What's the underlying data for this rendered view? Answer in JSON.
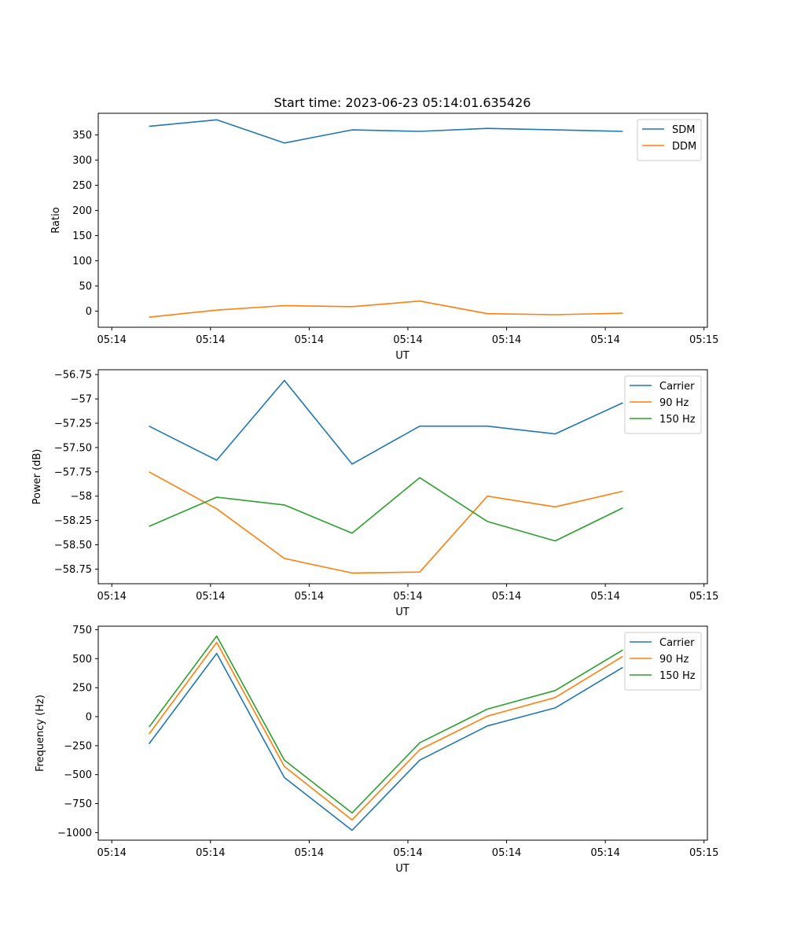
{
  "figure_title": "Start time: 2023-06-23 05:14:01.635426",
  "chart_data": [
    {
      "type": "line",
      "title": "",
      "xlabel": "UT",
      "ylabel": "Ratio",
      "x_ticks": [
        "05:14",
        "05:14",
        "05:14",
        "05:14",
        "05:14",
        "05:14",
        "05:15"
      ],
      "y_ticks": [
        0,
        50,
        100,
        150,
        200,
        250,
        300,
        350
      ],
      "ylim": [
        -32,
        393
      ],
      "x": [
        1,
        2,
        3,
        4,
        5,
        6,
        7,
        8
      ],
      "xlim": [
        0.25,
        9.25
      ],
      "grid": false,
      "legend_position": "top-right",
      "series": [
        {
          "name": "SDM",
          "color": "#1f77b4",
          "values": [
            367,
            380,
            334,
            360,
            357,
            363,
            360,
            357
          ]
        },
        {
          "name": "DDM",
          "color": "#ff7f0e",
          "values": [
            -12,
            2,
            11,
            9,
            20,
            -5,
            -7,
            -4
          ]
        }
      ]
    },
    {
      "type": "line",
      "title": "",
      "xlabel": "UT",
      "ylabel": "Power (dB)",
      "x_ticks": [
        "05:14",
        "05:14",
        "05:14",
        "05:14",
        "05:14",
        "05:14",
        "05:15"
      ],
      "y_ticks": [
        -58.75,
        -58.5,
        -58.25,
        -58.0,
        -57.75,
        -57.5,
        -57.25,
        -57.0,
        -56.75
      ],
      "ylim": [
        -58.9,
        -56.7
      ],
      "x": [
        1,
        2,
        3,
        4,
        5,
        6,
        7,
        8
      ],
      "xlim": [
        0.25,
        9.25
      ],
      "grid": false,
      "legend_position": "top-right",
      "series": [
        {
          "name": "Carrier",
          "color": "#1f77b4",
          "values": [
            -57.28,
            -57.63,
            -56.81,
            -57.67,
            -57.28,
            -57.28,
            -57.36,
            -57.04
          ]
        },
        {
          "name": "90 Hz",
          "color": "#ff7f0e",
          "values": [
            -57.75,
            -58.13,
            -58.64,
            -58.79,
            -58.78,
            -58.0,
            -58.11,
            -57.95
          ]
        },
        {
          "name": "150 Hz",
          "color": "#2ca02c",
          "values": [
            -58.31,
            -58.01,
            -58.09,
            -58.38,
            -57.81,
            -58.26,
            -58.46,
            -58.12
          ]
        }
      ]
    },
    {
      "type": "line",
      "title": "",
      "xlabel": "UT",
      "ylabel": "Frequency (Hz)",
      "x_ticks": [
        "05:14",
        "05:14",
        "05:14",
        "05:14",
        "05:14",
        "05:14",
        "05:15"
      ],
      "y_ticks": [
        -1000,
        -750,
        -500,
        -250,
        0,
        250,
        500,
        750
      ],
      "ylim": [
        -1065,
        780
      ],
      "x": [
        1,
        2,
        3,
        4,
        5,
        6,
        7,
        8
      ],
      "xlim": [
        0.25,
        9.25
      ],
      "grid": false,
      "legend_position": "top-right",
      "series": [
        {
          "name": "Carrier",
          "color": "#1f77b4",
          "values": [
            -235,
            545,
            -525,
            -980,
            -375,
            -80,
            75,
            425
          ]
        },
        {
          "name": "90 Hz",
          "color": "#ff7f0e",
          "values": [
            -150,
            640,
            -430,
            -890,
            -285,
            5,
            165,
            520
          ]
        },
        {
          "name": "150 Hz",
          "color": "#2ca02c",
          "values": [
            -90,
            695,
            -375,
            -830,
            -225,
            65,
            225,
            575
          ]
        }
      ]
    }
  ]
}
